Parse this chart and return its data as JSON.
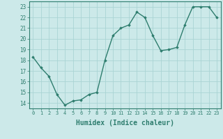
{
  "x": [
    0,
    1,
    2,
    3,
    4,
    5,
    6,
    7,
    8,
    9,
    10,
    11,
    12,
    13,
    14,
    15,
    16,
    17,
    18,
    19,
    20,
    21,
    22,
    23
  ],
  "y": [
    18.3,
    17.3,
    16.5,
    14.8,
    13.8,
    14.2,
    14.3,
    14.8,
    15.0,
    18.0,
    20.3,
    21.0,
    21.3,
    22.5,
    22.0,
    20.3,
    18.9,
    19.0,
    19.2,
    21.3,
    23.0,
    23.0,
    23.0,
    22.0
  ],
  "line_color": "#2e7d6e",
  "marker": "D",
  "marker_size": 1.8,
  "linewidth": 1.0,
  "xlabel": "Humidex (Indice chaleur)",
  "xlabel_fontsize": 7,
  "ylabel_ticks": [
    14,
    15,
    16,
    17,
    18,
    19,
    20,
    21,
    22,
    23
  ],
  "xlim": [
    -0.5,
    23.5
  ],
  "ylim": [
    13.5,
    23.5
  ],
  "bg_color": "#cce9e9",
  "grid_color": "#aad4d4",
  "tick_color": "#2e7d6e",
  "label_color": "#2e7d6e",
  "xtick_fontsize": 5.0,
  "ytick_fontsize": 5.5
}
